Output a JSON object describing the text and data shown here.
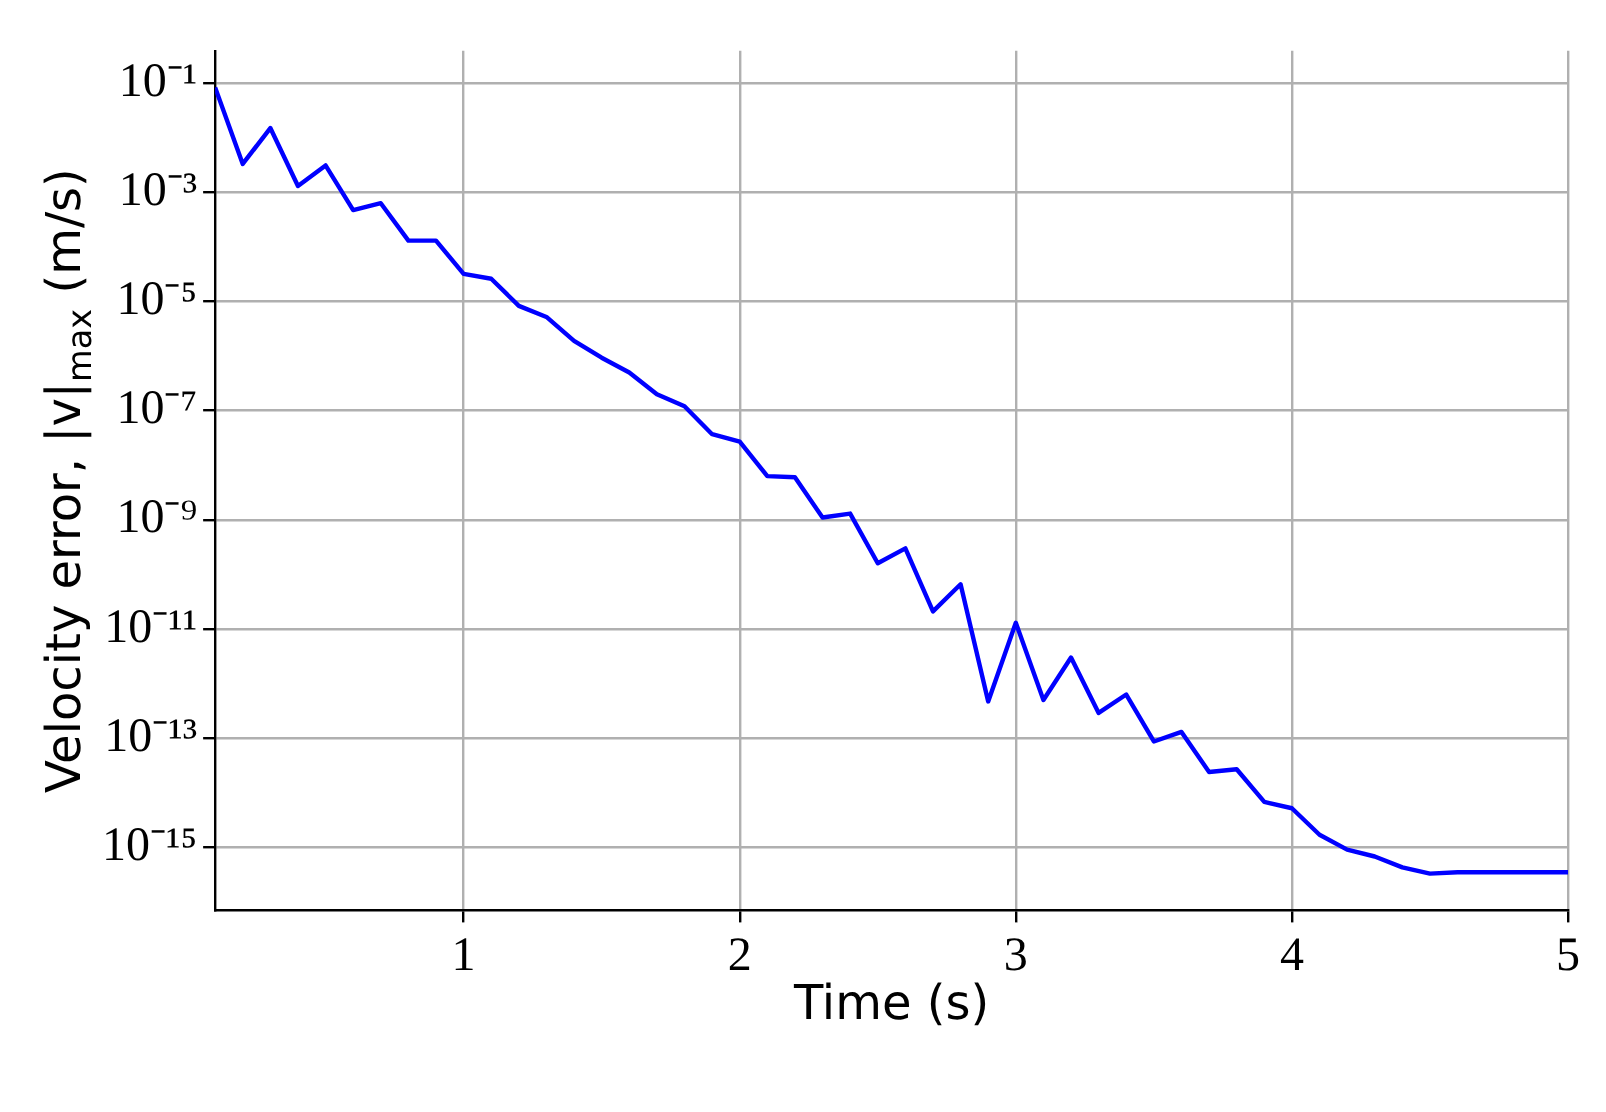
{
  "chart_data": {
    "type": "line",
    "xlabel": "Time (s)",
    "ylabel": "Velocity error, |v|$_{max}$ (m/s)",
    "x": [
      0.1,
      0.2,
      0.3,
      0.4,
      0.5,
      0.6,
      0.7,
      0.8,
      0.9,
      1.0,
      1.1,
      1.2,
      1.3,
      1.4,
      1.5,
      1.6,
      1.7,
      1.8,
      1.9,
      2.0,
      2.1,
      2.2,
      2.3,
      2.4,
      2.5,
      2.6,
      2.7,
      2.8,
      2.9,
      3.0,
      3.1,
      3.2,
      3.3,
      3.4,
      3.5,
      3.6,
      3.7,
      3.8,
      3.9,
      4.0,
      4.1,
      4.2,
      4.3,
      4.4,
      4.5,
      4.6,
      4.7,
      4.8,
      4.9,
      5.0
    ],
    "series": [
      {
        "color": "#0000ff",
        "values": [
          0.083,
          0.0033,
          0.015,
          0.0013,
          0.0031,
          0.00047,
          0.00063,
          0.00013,
          0.00013,
          3.2e-05,
          2.6e-05,
          8.3e-06,
          5.2e-06,
          1.9e-06,
          9.3e-07,
          5e-07,
          2e-07,
          1.2e-07,
          3.7e-08,
          2.7e-08,
          6.3e-09,
          6e-09,
          1.1e-09,
          1.3e-09,
          1.6e-10,
          3e-10,
          2.1e-11,
          6.6e-11,
          4.7e-13,
          1.3e-11,
          5e-13,
          3e-12,
          2.9e-13,
          6.3e-13,
          8.7e-14,
          1.3e-13,
          2.4e-14,
          2.7e-14,
          6.8e-15,
          5.2e-15,
          1.7e-15,
          9.1e-16,
          6.8e-16,
          4.3e-16,
          3.3e-16,
          3.5e-16,
          3.5e-16,
          3.5e-16,
          3.5e-16,
          3.5e-16
        ]
      }
    ],
    "xlim": [
      0.1,
      5
    ],
    "xticks": [
      1,
      2,
      3,
      4,
      5
    ],
    "ylim": [
      7e-17,
      0.39
    ],
    "yticks": [
      {
        "value": 0.1,
        "label": "10⁻¹"
      },
      {
        "value": 0.001,
        "label": "10⁻³"
      },
      {
        "value": 1e-05,
        "label": "10⁻⁵"
      },
      {
        "value": 1e-07,
        "label": "10⁻⁷"
      },
      {
        "value": 1e-09,
        "label": "10⁻⁹"
      },
      {
        "value": 1e-11,
        "label": "10⁻¹¹"
      },
      {
        "value": 1e-13,
        "label": "10⁻¹³"
      },
      {
        "value": 1e-15,
        "label": "10⁻¹⁵"
      }
    ],
    "log": "y",
    "grid": true,
    "legend": false,
    "marker": "none",
    "line_style": "solid"
  }
}
